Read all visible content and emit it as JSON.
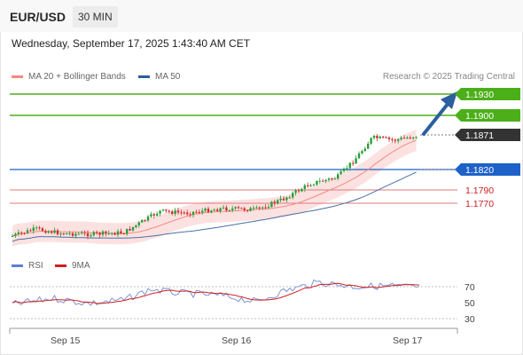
{
  "header": {
    "symbol": "EUR/USD",
    "timeframe": "30 MIN"
  },
  "datetime": "Wednesday, September 17, 2025 1:43:40 AM CET",
  "legend": {
    "ma20": {
      "label": "MA 20 + Bollinger Bands",
      "color": "#f28b82"
    },
    "ma50": {
      "label": "MA 50",
      "color": "#2b5f9e"
    }
  },
  "copyright": "Research © 2025 Trading Central",
  "levels": [
    {
      "value": "1.1930",
      "kind": "resistance",
      "color": "#4caf1a"
    },
    {
      "value": "1.1900",
      "kind": "resistance",
      "color": "#4caf1a"
    },
    {
      "value": "1.1871",
      "kind": "last",
      "color": "#333333"
    },
    {
      "value": "1.1820",
      "kind": "pivot",
      "color": "#1e62c8"
    },
    {
      "value": "1.1790",
      "kind": "support",
      "color": "#cc1f1f"
    },
    {
      "value": "1.1770",
      "kind": "support",
      "color": "#cc1f1f"
    }
  ],
  "rsi_legend": {
    "rsi": {
      "label": "RSI",
      "color": "#5b7fd1"
    },
    "ma9": {
      "label": "9MA",
      "color": "#d11f1f"
    }
  },
  "rsi_ticks": [
    "70",
    "50",
    "30"
  ],
  "x_ticks": [
    "Sep 15",
    "Sep 16",
    "Sep 17"
  ],
  "colors": {
    "bull": "#2a9d3a",
    "bear": "#d0312d",
    "arrow": "#2b5f9e",
    "band": "#fbdada"
  }
}
